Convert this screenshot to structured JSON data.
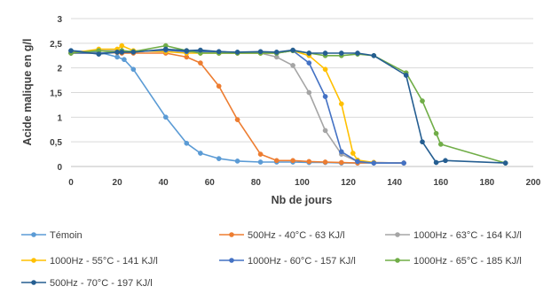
{
  "chart_data": {
    "type": "line",
    "title": "",
    "xlabel": "Nb de jours",
    "ylabel": "Acide malique en g/l",
    "xlim": [
      0,
      200
    ],
    "ylim": [
      0,
      3
    ],
    "xticks": [
      0,
      20,
      40,
      60,
      80,
      100,
      120,
      140,
      160,
      180,
      200
    ],
    "yticks": [
      0,
      0.5,
      1,
      1.5,
      2,
      2.5,
      3
    ],
    "ytick_labels": [
      "0",
      "0,5",
      "1",
      "1,5",
      "2",
      "2,5",
      "3"
    ],
    "grid": "horizontal",
    "legend_position": "bottom",
    "series": [
      {
        "name": "Témoin",
        "color": "#5B9BD5",
        "points": [
          [
            0,
            2.35
          ],
          [
            12,
            2.32
          ],
          [
            20,
            2.22
          ],
          [
            23,
            2.17
          ],
          [
            27,
            1.97
          ],
          [
            41,
            1.0
          ],
          [
            50,
            0.47
          ],
          [
            56,
            0.27
          ],
          [
            64,
            0.16
          ],
          [
            72,
            0.11
          ],
          [
            82,
            0.09
          ],
          [
            89,
            0.09
          ],
          [
            96,
            0.09
          ],
          [
            103,
            0.08
          ],
          [
            110,
            0.08
          ],
          [
            117,
            0.07
          ],
          [
            124,
            0.07
          ],
          [
            131,
            0.07
          ],
          [
            144,
            0.07
          ]
        ]
      },
      {
        "name": "500Hz - 40°C - 63 KJ/l",
        "color": "#ED7D31",
        "points": [
          [
            0,
            2.3
          ],
          [
            12,
            2.3
          ],
          [
            20,
            2.31
          ],
          [
            22,
            2.3
          ],
          [
            27,
            2.3
          ],
          [
            41,
            2.3
          ],
          [
            50,
            2.22
          ],
          [
            56,
            2.1
          ],
          [
            64,
            1.63
          ],
          [
            72,
            0.95
          ],
          [
            82,
            0.25
          ],
          [
            89,
            0.12
          ],
          [
            96,
            0.12
          ],
          [
            103,
            0.1
          ],
          [
            110,
            0.09
          ],
          [
            117,
            0.08
          ],
          [
            124,
            0.07
          ],
          [
            131,
            0.08
          ],
          [
            144,
            0.07
          ]
        ]
      },
      {
        "name": "1000Hz - 63°C - 164 KJ/l",
        "color": "#A5A5A5",
        "points": [
          [
            0,
            2.32
          ],
          [
            12,
            2.35
          ],
          [
            20,
            2.35
          ],
          [
            22,
            2.34
          ],
          [
            27,
            2.33
          ],
          [
            41,
            2.36
          ],
          [
            50,
            2.33
          ],
          [
            56,
            2.32
          ],
          [
            64,
            2.3
          ],
          [
            72,
            2.3
          ],
          [
            82,
            2.3
          ],
          [
            89,
            2.22
          ],
          [
            96,
            2.05
          ],
          [
            103,
            1.5
          ],
          [
            110,
            0.73
          ],
          [
            117,
            0.25
          ],
          [
            124,
            0.1
          ],
          [
            131,
            0.08
          ],
          [
            144,
            0.07
          ]
        ]
      },
      {
        "name": "1000Hz - 55°C - 141 KJ/l",
        "color": "#FFC000",
        "points": [
          [
            0,
            2.3
          ],
          [
            12,
            2.38
          ],
          [
            20,
            2.38
          ],
          [
            22,
            2.45
          ],
          [
            27,
            2.35
          ],
          [
            41,
            2.33
          ],
          [
            50,
            2.3
          ],
          [
            56,
            2.3
          ],
          [
            64,
            2.3
          ],
          [
            72,
            2.3
          ],
          [
            82,
            2.3
          ],
          [
            89,
            2.3
          ],
          [
            96,
            2.35
          ],
          [
            103,
            2.25
          ],
          [
            110,
            1.97
          ],
          [
            117,
            1.27
          ],
          [
            122,
            0.27
          ],
          [
            124,
            0.13
          ],
          [
            131,
            0.08
          ]
        ]
      },
      {
        "name": "1000Hz - 60°C - 157 KJ/l",
        "color": "#4472C4",
        "points": [
          [
            0,
            2.3
          ],
          [
            12,
            2.3
          ],
          [
            20,
            2.32
          ],
          [
            22,
            2.35
          ],
          [
            27,
            2.33
          ],
          [
            41,
            2.36
          ],
          [
            50,
            2.33
          ],
          [
            56,
            2.33
          ],
          [
            64,
            2.33
          ],
          [
            72,
            2.31
          ],
          [
            82,
            2.32
          ],
          [
            89,
            2.3
          ],
          [
            96,
            2.35
          ],
          [
            103,
            2.1
          ],
          [
            110,
            1.42
          ],
          [
            117,
            0.3
          ],
          [
            124,
            0.1
          ],
          [
            131,
            0.07
          ],
          [
            144,
            0.07
          ]
        ]
      },
      {
        "name": "1000Hz - 65°C - 185 KJ/l",
        "color": "#70AD47",
        "points": [
          [
            0,
            2.3
          ],
          [
            12,
            2.35
          ],
          [
            20,
            2.32
          ],
          [
            22,
            2.35
          ],
          [
            27,
            2.33
          ],
          [
            41,
            2.45
          ],
          [
            50,
            2.35
          ],
          [
            56,
            2.3
          ],
          [
            64,
            2.3
          ],
          [
            72,
            2.3
          ],
          [
            82,
            2.3
          ],
          [
            89,
            2.3
          ],
          [
            96,
            2.35
          ],
          [
            103,
            2.3
          ],
          [
            110,
            2.25
          ],
          [
            117,
            2.25
          ],
          [
            124,
            2.28
          ],
          [
            131,
            2.25
          ],
          [
            145,
            1.9
          ],
          [
            152,
            1.33
          ],
          [
            158,
            0.67
          ],
          [
            160,
            0.45
          ],
          [
            188,
            0.07
          ]
        ]
      },
      {
        "name": "500Hz - 70°C - 197 KJ/l",
        "color": "#255E91",
        "points": [
          [
            0,
            2.35
          ],
          [
            12,
            2.28
          ],
          [
            20,
            2.32
          ],
          [
            22,
            2.32
          ],
          [
            27,
            2.32
          ],
          [
            41,
            2.38
          ],
          [
            50,
            2.35
          ],
          [
            56,
            2.36
          ],
          [
            64,
            2.33
          ],
          [
            72,
            2.32
          ],
          [
            82,
            2.33
          ],
          [
            89,
            2.32
          ],
          [
            96,
            2.36
          ],
          [
            103,
            2.3
          ],
          [
            110,
            2.3
          ],
          [
            117,
            2.3
          ],
          [
            124,
            2.3
          ],
          [
            131,
            2.25
          ],
          [
            145,
            1.85
          ],
          [
            152,
            0.5
          ],
          [
            158,
            0.08
          ],
          [
            162,
            0.12
          ],
          [
            188,
            0.07
          ]
        ]
      }
    ]
  }
}
